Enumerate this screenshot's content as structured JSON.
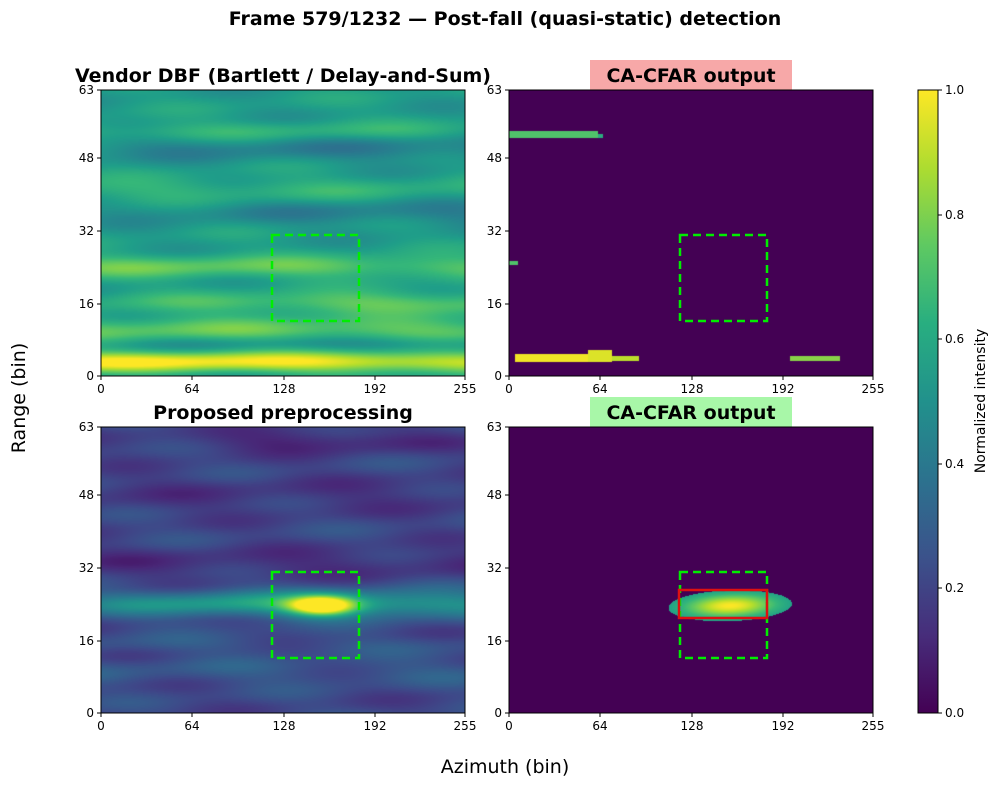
{
  "figure": {
    "suptitle": "Frame 579/1232 — Post-fall (quasi-static) detection",
    "xlabel": "Azimuth (bin)",
    "ylabel": "Range (bin)"
  },
  "colors": {
    "roi_box": "#00ee00",
    "detection_box": "#dd1111",
    "title_bad_bg": "#f7a8a8",
    "title_good_bg": "#a8f7a8"
  },
  "chart_data": [
    {
      "type": "heatmap",
      "id": "vendor",
      "title": "Vendor DBF (Bartlett / Delay-and-Sum)",
      "x_ticks": [
        0,
        64,
        128,
        192,
        255
      ],
      "y_ticks": [
        0,
        16,
        32,
        48,
        63
      ],
      "xlim": [
        0,
        255
      ],
      "ylim": [
        0,
        63
      ],
      "roi_box": {
        "x": [
          120,
          182
        ],
        "y": [
          12,
          31
        ]
      },
      "background_level": 0.55,
      "bands": [
        {
          "range_bin": 3,
          "az_center": 40,
          "az_width": 300,
          "range_width": 1.6,
          "level": 0.45
        },
        {
          "range_bin": 10,
          "az_center": 128,
          "az_width": 400,
          "range_width": 2.0,
          "level": 0.2
        },
        {
          "range_bin": 16,
          "az_center": 200,
          "az_width": 140,
          "range_width": 1.8,
          "level": 0.2
        },
        {
          "range_bin": 24,
          "az_center": 60,
          "az_width": 300,
          "range_width": 1.8,
          "level": 0.2
        },
        {
          "range_bin": 41,
          "az_center": 40,
          "az_width": 250,
          "range_width": 2.0,
          "level": 0.1
        },
        {
          "range_bin": 54,
          "az_center": 100,
          "az_width": 200,
          "range_width": 1.5,
          "level": 0.1
        },
        {
          "range_bin": 36,
          "az_center": 230,
          "az_width": 150,
          "range_width": 2.0,
          "level": -0.12
        },
        {
          "range_bin": 50,
          "az_center": 200,
          "az_width": 200,
          "range_width": 2.0,
          "level": -0.12
        },
        {
          "range_bin": 7,
          "az_center": 200,
          "az_width": 150,
          "range_width": 1.2,
          "level": -0.1
        }
      ]
    },
    {
      "type": "heatmap",
      "id": "vendor_cfar",
      "title": "CA-CFAR output",
      "title_status": "bad",
      "x_ticks": [
        0,
        64,
        128,
        192,
        255
      ],
      "y_ticks": [
        0,
        16,
        32,
        48,
        63
      ],
      "xlim": [
        0,
        255
      ],
      "ylim": [
        0,
        63
      ],
      "roi_box": {
        "x": [
          120,
          182
        ],
        "y": [
          12,
          31
        ]
      },
      "background_level": 0.0,
      "detections": [
        {
          "x": [
            0,
            62
          ],
          "y": [
            52.6,
            54.0
          ],
          "level": 0.72
        },
        {
          "x": [
            62,
            66
          ],
          "y": [
            52.6,
            53.4
          ],
          "level": 0.62
        },
        {
          "x": [
            0,
            6
          ],
          "y": [
            24.4,
            25.4
          ],
          "level": 0.72
        },
        {
          "x": [
            4,
            55
          ],
          "y": [
            3.0,
            4.8
          ],
          "level": 0.98
        },
        {
          "x": [
            55,
            72
          ],
          "y": [
            3.0,
            5.6
          ],
          "level": 0.95
        },
        {
          "x": [
            72,
            91
          ],
          "y": [
            3.3,
            4.4
          ],
          "level": 0.9
        },
        {
          "x": [
            197,
            232
          ],
          "y": [
            3.3,
            4.4
          ],
          "level": 0.82
        }
      ]
    },
    {
      "type": "heatmap",
      "id": "proposed",
      "title": "Proposed preprocessing",
      "x_ticks": [
        0,
        64,
        128,
        192,
        255
      ],
      "y_ticks": [
        0,
        16,
        32,
        48,
        63
      ],
      "xlim": [
        0,
        255
      ],
      "ylim": [
        0,
        63
      ],
      "roi_box": {
        "x": [
          120,
          182
        ],
        "y": [
          12,
          31
        ]
      },
      "background_level": 0.22,
      "bands": [
        {
          "range_bin": 24,
          "az_center": 150,
          "az_width": 100,
          "range_width": 2.2,
          "level": 0.26
        },
        {
          "range_bin": 24,
          "az_center": 60,
          "az_width": 90,
          "range_width": 1.8,
          "level": 0.14
        },
        {
          "range_bin": 24,
          "az_center": 245,
          "az_width": 60,
          "range_width": 2.0,
          "level": 0.1
        },
        {
          "range_bin": 33,
          "az_center": 120,
          "az_width": 300,
          "range_width": 2.5,
          "level": -0.08
        },
        {
          "range_bin": 48,
          "az_center": 150,
          "az_width": 300,
          "range_width": 3.0,
          "level": -0.06
        },
        {
          "range_bin": 60,
          "az_center": 150,
          "az_width": 70,
          "range_width": 2.0,
          "level": -0.12
        },
        {
          "range_bin": 9,
          "az_center": 128,
          "az_width": 400,
          "range_width": 2.0,
          "level": 0.06
        },
        {
          "range_bin": 15,
          "az_center": 60,
          "az_width": 200,
          "range_width": 1.5,
          "level": 0.05
        }
      ],
      "hotspot": {
        "az": 155,
        "range_bin": 23.6,
        "az_sigma": 16,
        "range_sigma": 1.5,
        "level": 0.75
      }
    },
    {
      "type": "heatmap",
      "id": "proposed_cfar",
      "title": "CA-CFAR output",
      "title_status": "good",
      "x_ticks": [
        0,
        64,
        128,
        192,
        255
      ],
      "y_ticks": [
        0,
        16,
        32,
        48,
        63
      ],
      "xlim": [
        0,
        255
      ],
      "ylim": [
        0,
        63
      ],
      "roi_box": {
        "x": [
          120,
          182
        ],
        "y": [
          12,
          31
        ]
      },
      "detection_box": {
        "x": [
          119,
          181
        ],
        "y": [
          21,
          26.5
        ]
      },
      "background_level": 0.0,
      "blob": {
        "az": 155,
        "range_bin": 23.6,
        "az_sigma": 28,
        "range_sigma": 2.2,
        "peak": 1.0,
        "floor": 0.5,
        "threshold": 0.3,
        "az_max": 224,
        "az_min": 112
      }
    }
  ],
  "colorbar": {
    "label": "Normalized intensity",
    "ticks": [
      "0.0",
      "0.2",
      "0.4",
      "0.6",
      "0.8",
      "1.0"
    ],
    "range": [
      0.0,
      1.0
    ]
  }
}
